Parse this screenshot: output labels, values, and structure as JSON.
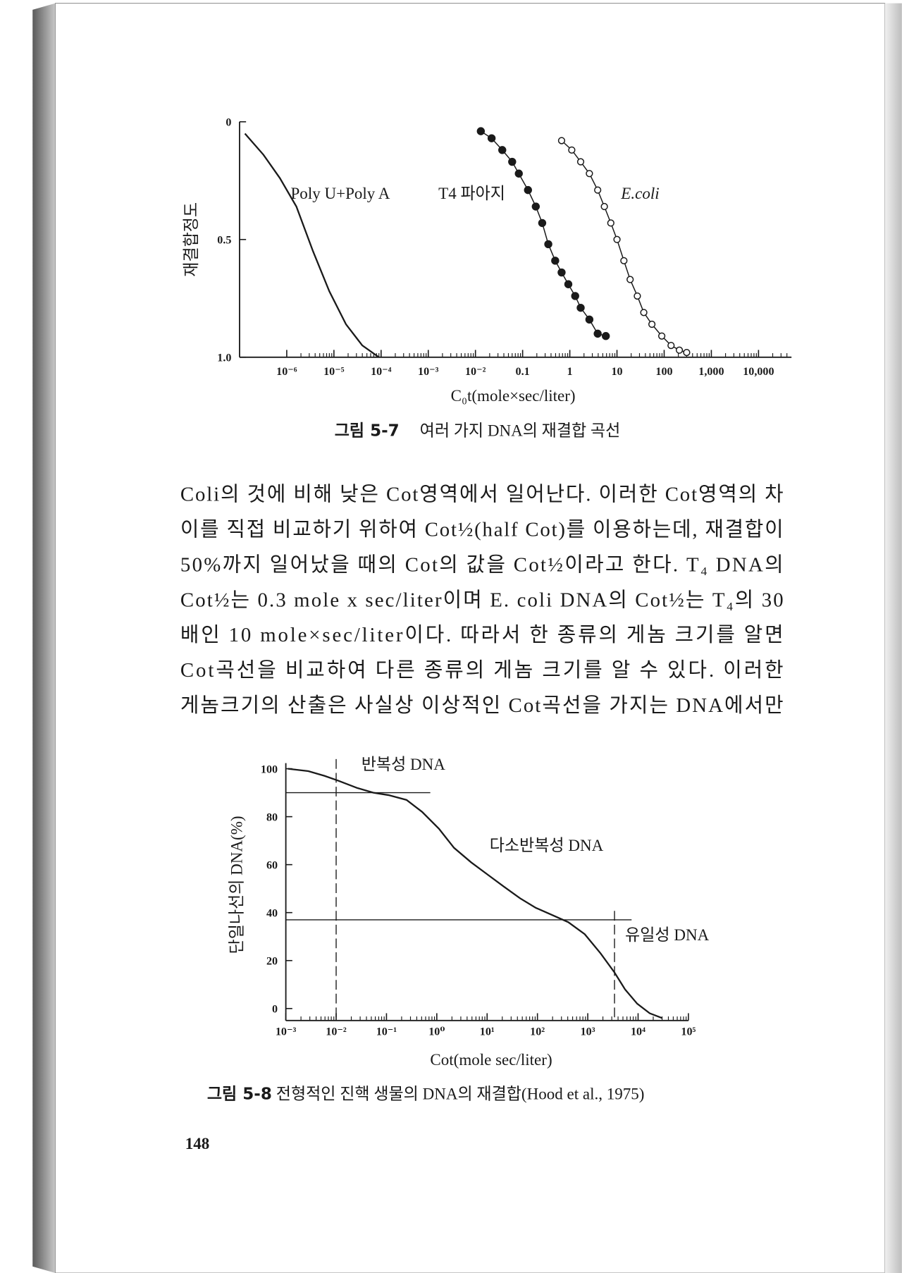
{
  "chart_data": [
    {
      "type": "line",
      "x_scale": "log",
      "y_title": "재결합정도",
      "x_title": "C₀t(mole×sec/liter)",
      "caption_label": "그림 5-7",
      "caption": "여러 가지 DNA의 재결합 곡선",
      "xlim": [
        1e-07,
        50000
      ],
      "ylim": [
        1,
        0
      ],
      "xticks": [
        {
          "value": 1e-06,
          "label": "10⁻⁶"
        },
        {
          "value": 1e-05,
          "label": "10⁻⁵"
        },
        {
          "value": 0.0001,
          "label": "10⁻⁴"
        },
        {
          "value": 0.001,
          "label": "10⁻³"
        },
        {
          "value": 0.01,
          "label": "10⁻²"
        },
        0.1,
        1,
        10,
        100,
        {
          "value": 1000,
          "label": "1,000"
        },
        {
          "value": 10000,
          "label": "10,000"
        }
      ],
      "yticks": [
        0,
        0.5,
        {
          "value": 1,
          "label": "1.0"
        }
      ],
      "series": [
        {
          "name": "Poly U+Poly A",
          "color": "#1a1a1a",
          "marker": "none",
          "x": [
            1.3e-07,
            3.2e-07,
            7.2e-07,
            1.6e-06,
            3.6e-06,
            8e-06,
            1.8e-05,
            4e-05,
            9e-05
          ],
          "values": [
            0.05,
            0.14,
            0.24,
            0.36,
            0.55,
            0.72,
            0.86,
            0.95,
            1.0
          ]
        },
        {
          "name": "T4 파아지",
          "color": "#1a1a1a",
          "marker": "filled",
          "x": [
            0.013,
            0.022,
            0.037,
            0.06,
            0.083,
            0.13,
            0.19,
            0.26,
            0.35,
            0.49,
            0.67,
            0.93,
            1.3,
            1.7,
            2.6,
            3.9,
            5.8
          ],
          "values": [
            0.04,
            0.07,
            0.12,
            0.17,
            0.22,
            0.29,
            0.36,
            0.43,
            0.52,
            0.59,
            0.64,
            0.69,
            0.74,
            0.79,
            0.84,
            0.9,
            0.91
          ]
        },
        {
          "name": "E.coli",
          "color": "#1a1a1a",
          "marker": "open",
          "x": [
            0.67,
            1.1,
            1.7,
            2.6,
            3.9,
            5.4,
            7.4,
            10,
            14,
            19,
            27,
            37,
            55,
            89,
            140,
            210,
            300
          ],
          "values": [
            0.08,
            0.12,
            0.17,
            0.22,
            0.29,
            0.36,
            0.43,
            0.5,
            0.59,
            0.67,
            0.74,
            0.81,
            0.86,
            0.91,
            0.95,
            0.97,
            0.98
          ]
        }
      ]
    },
    {
      "type": "line",
      "x_scale": "log",
      "y_title": "단일나선의 DNA(%)",
      "x_title": "Cot(mole sec/liter)",
      "caption_label": "그림 5-8",
      "caption": "전형적인 진핵 생물의 DNA의 재결합(Hood et al., 1975)",
      "xlim": [
        0.001,
        100000
      ],
      "ylim": [
        -5,
        103
      ],
      "xticks": [
        {
          "value": 0.001,
          "label": "10⁻³"
        },
        {
          "value": 0.01,
          "label": "10⁻²"
        },
        {
          "value": 0.1,
          "label": "10⁻¹"
        },
        {
          "value": 1,
          "label": "10⁰"
        },
        {
          "value": 10,
          "label": "10¹"
        },
        {
          "value": 100,
          "label": "10²"
        },
        {
          "value": 1000,
          "label": "10³"
        },
        {
          "value": 10000,
          "label": "10⁴"
        },
        {
          "value": 100000,
          "label": "10⁵"
        }
      ],
      "yticks": [
        0,
        20,
        40,
        60,
        80,
        100
      ],
      "hlines": [
        90,
        37
      ],
      "vlines": [
        0.01,
        3400
      ],
      "annotations": [
        "반복성 DNA",
        "다소반복성 DNA",
        "유일성 DNA"
      ],
      "series": [
        {
          "color": "#1a1a1a",
          "marker": "none",
          "x": [
            0.0011,
            0.0028,
            0.0059,
            0.011,
            0.026,
            0.055,
            0.11,
            0.25,
            0.51,
            1.1,
            2.2,
            4.8,
            10,
            21,
            45,
            93,
            195,
            410,
            870,
            1800,
            3400,
            5500,
            9600,
            17000,
            30000
          ],
          "values": [
            100,
            99,
            97,
            95,
            92,
            90,
            89,
            87,
            82,
            75,
            67,
            61,
            56,
            51,
            46,
            42,
            39,
            36,
            31,
            23,
            15,
            8,
            2,
            -2,
            -4
          ]
        }
      ]
    }
  ],
  "body_text": [
    "Coli의 것에 비해 낮은 Cot영역에서 일어난다. 이러한 Cot영역의 차",
    "이를 직접 비교하기 위하여 Cot½(half Cot)를 이용하는데, 재결합이",
    "50%까지 일어났을 때의 Cot의 값을 Cot½이라고 한다. T₄ DNA의",
    "Cot½는 0.3 mole x sec/liter이며 E. coli DNA의 Cot½는 T₄의 30",
    "배인 10 mole×sec/liter이다. 따라서 한 종류의 게놈 크기를 알면",
    "Cot곡선을 비교하여 다른 종류의 게놈 크기를 알 수 있다. 이러한",
    "게놈크기의 산출은 사실상 이상적인 Cot곡선을 가지는 DNA에서만"
  ],
  "page_number": "148"
}
